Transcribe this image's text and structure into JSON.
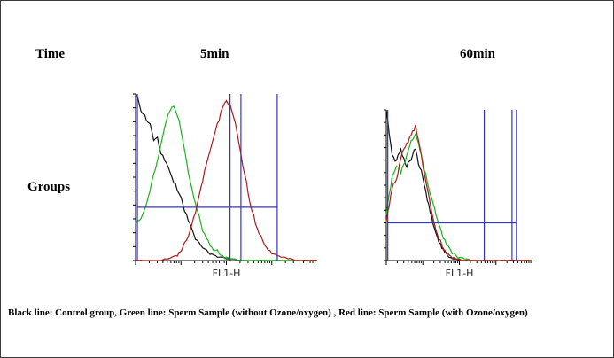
{
  "labels": {
    "time": "Time",
    "groups": "Groups",
    "col_5min": "5min",
    "col_60min": "60min",
    "legend_note": "Black line: Control group, Green line: Sperm Sample (without Ozone/oxygen) , Red line: Sperm Sample (with Ozone/oxygen)"
  },
  "colors": {
    "black_line": "#111111",
    "green_line": "#1bb31b",
    "red_line": "#b01a1a",
    "gate": "#3333cc"
  },
  "chart_data": [
    {
      "type": "line",
      "title": "5min",
      "xlabel": "FL1-H",
      "ylabel": "",
      "xlim": [
        0,
        10
      ],
      "ylim": [
        0,
        100
      ],
      "x": [
        0.0,
        0.2,
        0.4,
        0.6,
        0.8,
        1.0,
        1.2,
        1.4,
        1.6,
        1.8,
        2.0,
        2.2,
        2.4,
        2.6,
        2.8,
        3.0,
        3.2,
        3.4,
        3.6,
        3.8,
        4.0,
        4.2,
        4.4,
        4.6,
        4.8,
        5.0,
        5.2,
        5.4,
        5.6,
        5.8,
        6.0,
        6.2,
        6.4,
        6.6,
        6.8,
        7.0,
        7.2,
        7.4,
        7.6,
        7.8,
        8.0,
        8.2,
        8.4,
        8.6,
        8.8,
        9.0,
        9.2,
        9.4,
        9.6,
        9.8,
        10.0
      ],
      "series": [
        {
          "name": "Control group",
          "color_key": "black_line",
          "values": [
            100,
            94,
            88,
            84,
            82,
            72,
            74,
            64,
            60,
            56,
            50,
            46,
            40,
            34,
            28,
            22,
            16,
            12,
            9,
            7,
            5,
            4,
            3,
            2,
            2,
            1,
            1,
            1,
            0,
            0,
            0,
            0,
            0,
            0,
            0,
            0,
            0,
            0,
            0,
            0,
            0,
            0,
            0,
            0,
            0,
            0,
            0,
            0,
            0,
            0,
            0
          ]
        },
        {
          "name": "Sperm Sample (without Ozone/oxygen)",
          "color_key": "green_line",
          "values": [
            22,
            24,
            28,
            34,
            42,
            52,
            60,
            70,
            80,
            88,
            92,
            90,
            84,
            72,
            60,
            48,
            38,
            30,
            22,
            16,
            12,
            8,
            6,
            4,
            3,
            2,
            1,
            1,
            0,
            0,
            0,
            0,
            0,
            0,
            0,
            0,
            0,
            0,
            0,
            0,
            0,
            0,
            0,
            0,
            0,
            0,
            0,
            0,
            0,
            0,
            0
          ]
        },
        {
          "name": "Sperm Sample (with Ozone/oxygen)",
          "color_key": "red_line",
          "values": [
            0,
            0,
            0,
            0,
            0,
            0,
            0,
            0,
            1,
            1,
            2,
            3,
            5,
            8,
            12,
            18,
            26,
            34,
            44,
            54,
            62,
            70,
            78,
            84,
            92,
            96,
            94,
            86,
            76,
            64,
            52,
            40,
            30,
            22,
            16,
            12,
            8,
            6,
            4,
            3,
            2,
            2,
            1,
            1,
            0,
            0,
            0,
            0,
            0,
            0,
            0
          ]
        }
      ],
      "gates_x": [
        0.1,
        5.2,
        5.8,
        7.8
      ],
      "gate_y": 32
    },
    {
      "type": "line",
      "title": "60min",
      "xlabel": "FL1-H",
      "ylabel": "",
      "xlim": [
        0,
        10
      ],
      "ylim": [
        0,
        100
      ],
      "x": [
        0.0,
        0.2,
        0.4,
        0.6,
        0.8,
        1.0,
        1.2,
        1.4,
        1.6,
        1.8,
        2.0,
        2.2,
        2.4,
        2.6,
        2.8,
        3.0,
        3.2,
        3.4,
        3.6,
        3.8,
        4.0,
        4.2,
        4.4,
        4.6,
        4.8,
        5.0,
        5.2,
        5.4,
        5.6,
        5.8,
        6.0,
        6.2,
        6.4,
        6.6,
        6.8,
        7.0,
        7.2,
        7.4,
        7.6,
        7.8,
        8.0,
        8.2,
        8.4,
        8.6,
        8.8,
        9.0,
        9.2,
        9.4,
        9.6,
        9.8,
        10.0
      ],
      "series": [
        {
          "name": "Control group",
          "color_key": "black_line",
          "values": [
            100,
            84,
            70,
            66,
            70,
            74,
            68,
            62,
            66,
            70,
            74,
            64,
            60,
            50,
            40,
            32,
            24,
            18,
            12,
            8,
            5,
            3,
            2,
            1,
            1,
            0,
            0,
            0,
            0,
            0,
            0,
            0,
            0,
            0,
            0,
            0,
            0,
            0,
            0,
            0,
            0,
            0,
            0,
            0,
            0,
            0,
            0,
            0,
            0,
            0,
            0
          ]
        },
        {
          "name": "Sperm Sample (without Ozone/oxygen)",
          "color_key": "green_line",
          "values": [
            30,
            44,
            56,
            60,
            62,
            58,
            64,
            70,
            76,
            80,
            84,
            78,
            70,
            60,
            52,
            44,
            38,
            30,
            24,
            18,
            14,
            10,
            7,
            5,
            3,
            2,
            2,
            1,
            1,
            0,
            0,
            0,
            0,
            0,
            0,
            0,
            0,
            0,
            0,
            0,
            0,
            0,
            0,
            0,
            0,
            0,
            0,
            0,
            0,
            0,
            0
          ]
        },
        {
          "name": "Sperm Sample (with Ozone/oxygen)",
          "color_key": "red_line",
          "values": [
            26,
            36,
            48,
            52,
            58,
            68,
            74,
            78,
            82,
            86,
            90,
            80,
            70,
            58,
            48,
            38,
            28,
            20,
            14,
            10,
            7,
            5,
            3,
            2,
            1,
            1,
            0,
            0,
            0,
            0,
            0,
            0,
            0,
            0,
            0,
            0,
            0,
            0,
            0,
            0,
            0,
            0,
            0,
            0,
            0,
            0,
            0,
            0,
            0,
            0,
            0
          ]
        }
      ],
      "gates_x": [
        0.1,
        6.7,
        8.6,
        8.9
      ],
      "gate_y": 25
    }
  ]
}
